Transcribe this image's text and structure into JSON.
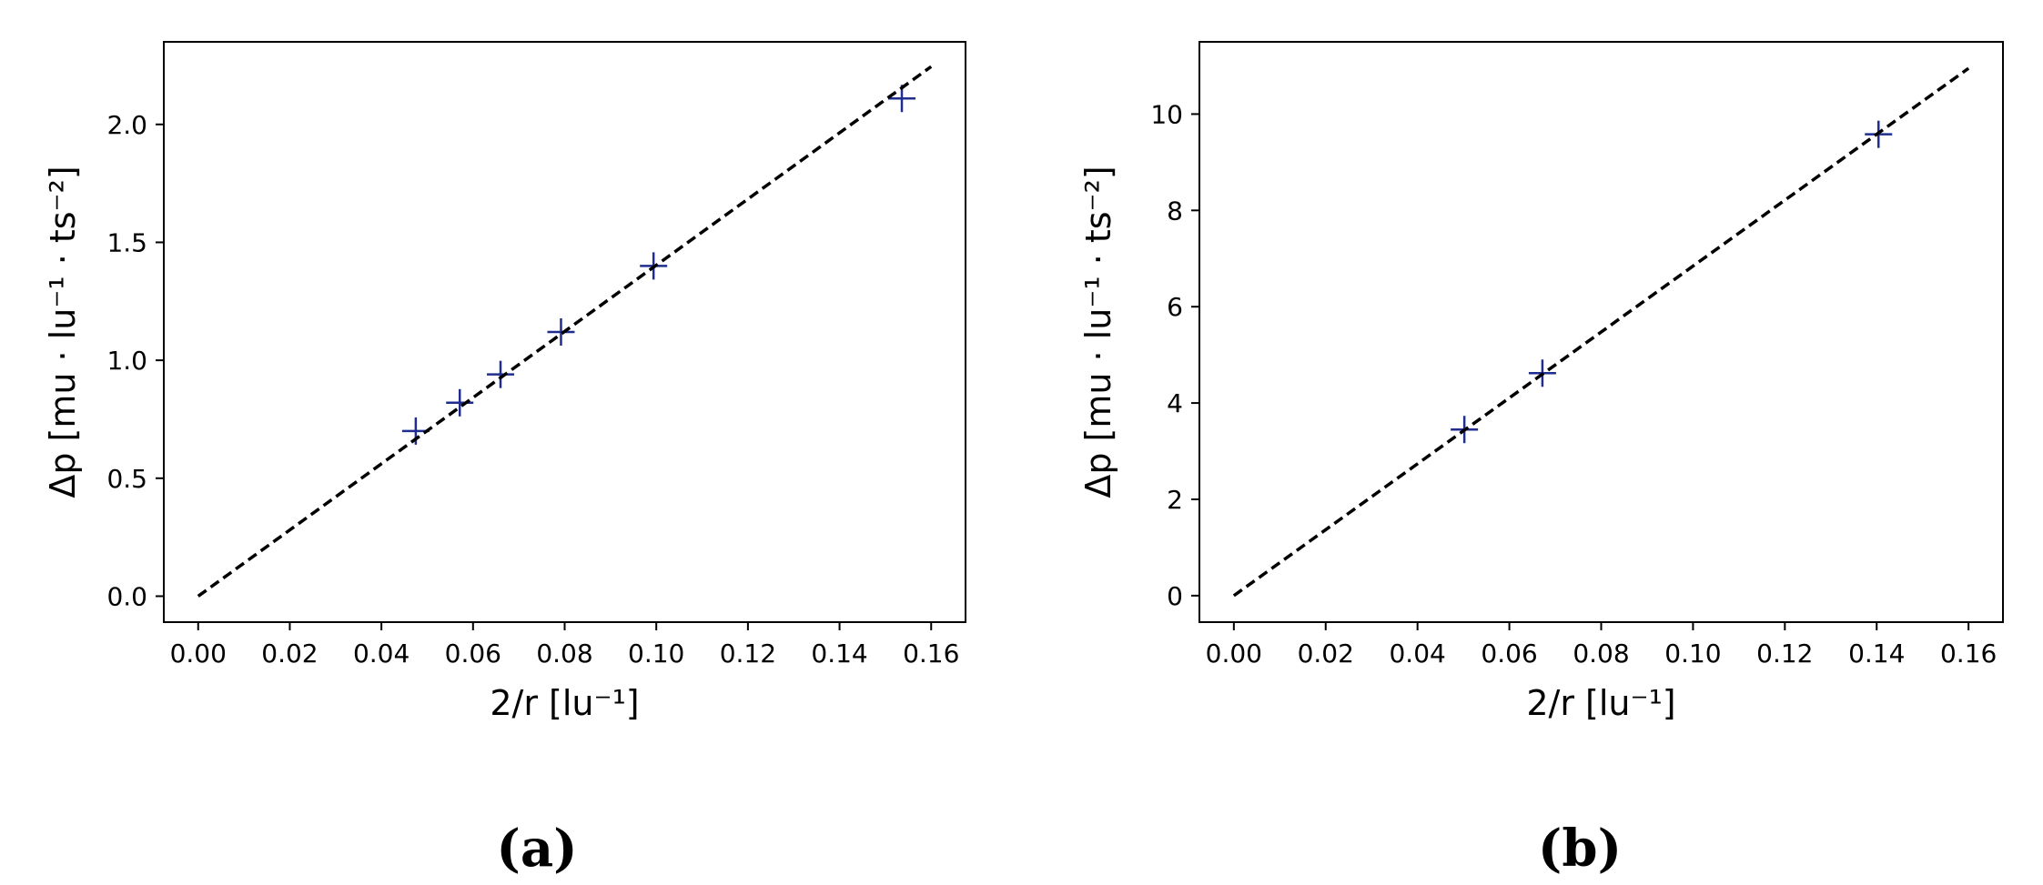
{
  "chart_data": [
    {
      "type": "scatter",
      "panel_label": "(a)",
      "xlabel": "2/r [lu⁻¹]",
      "ylabel": "Δp [mu · lu⁻¹ · ts⁻²]",
      "xlim": [
        -0.0075,
        0.1675
      ],
      "ylim": [
        -0.11,
        2.35
      ],
      "xticks": [
        0.0,
        0.02,
        0.04,
        0.06,
        0.08,
        0.1,
        0.12,
        0.14,
        0.16
      ],
      "xtick_labels": [
        "0.00",
        "0.02",
        "0.04",
        "0.06",
        "0.08",
        "0.10",
        "0.12",
        "0.14",
        "0.16"
      ],
      "yticks": [
        0.0,
        0.5,
        1.0,
        1.5,
        2.0
      ],
      "ytick_labels": [
        "0.0",
        "0.5",
        "1.0",
        "1.5",
        "2.0"
      ],
      "grid": false,
      "series": [
        {
          "marker": "plus",
          "color": "#1f2d8f",
          "x": [
            0.0475,
            0.0571,
            0.066,
            0.0792,
            0.0994,
            0.1536
          ],
          "y": [
            0.7,
            0.82,
            0.94,
            1.12,
            1.4,
            2.11
          ]
        },
        {
          "line": "dashed",
          "color": "#000000",
          "x": [
            0.0,
            0.16
          ],
          "y": [
            0.0,
            2.245
          ]
        }
      ]
    },
    {
      "type": "scatter",
      "panel_label": "(b)",
      "xlabel": "2/r [lu⁻¹]",
      "ylabel": "Δp [mu · lu⁻¹ · ts⁻²]",
      "xlim": [
        -0.0075,
        0.1675
      ],
      "ylim": [
        -0.55,
        11.5
      ],
      "xticks": [
        0.0,
        0.02,
        0.04,
        0.06,
        0.08,
        0.1,
        0.12,
        0.14,
        0.16
      ],
      "xtick_labels": [
        "0.00",
        "0.02",
        "0.04",
        "0.06",
        "0.08",
        "0.10",
        "0.12",
        "0.14",
        "0.16"
      ],
      "yticks": [
        0,
        2,
        4,
        6,
        8,
        10
      ],
      "ytick_labels": [
        "0",
        "2",
        "4",
        "6",
        "8",
        "10"
      ],
      "grid": false,
      "series": [
        {
          "marker": "plus",
          "color": "#1f2d8f",
          "x": [
            0.0502,
            0.0672,
            0.1404
          ],
          "y": [
            3.45,
            4.62,
            9.58
          ]
        },
        {
          "line": "dashed",
          "color": "#000000",
          "x": [
            0.0,
            0.16
          ],
          "y": [
            0.0,
            10.95
          ]
        }
      ]
    }
  ]
}
